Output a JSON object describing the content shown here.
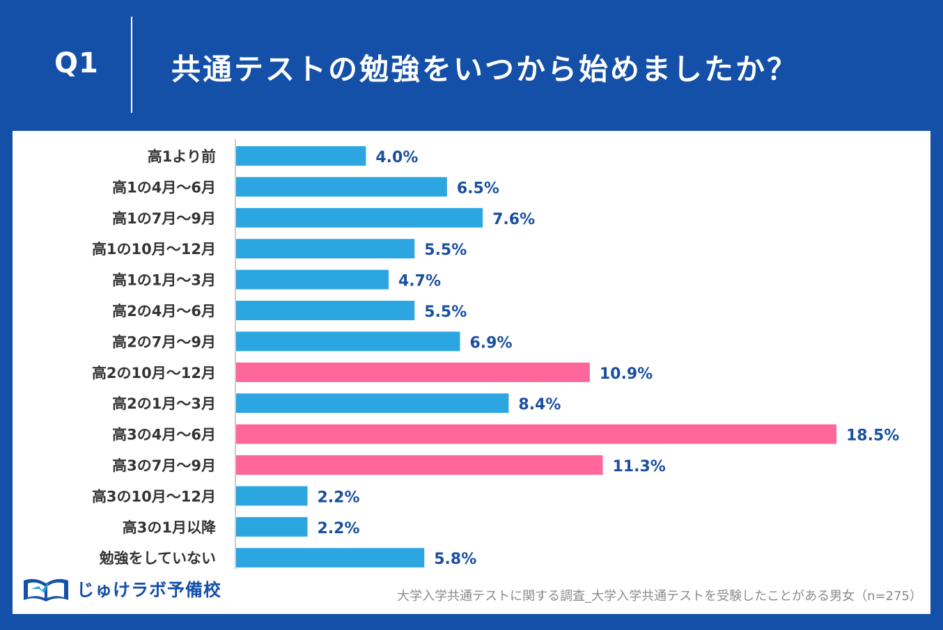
{
  "header": {
    "question_label": "Q1",
    "question_text": "共通テストの勉強をいつから始めましたか？"
  },
  "colors": {
    "background": "#1550a8",
    "bar_default": "#2ca6e0",
    "bar_highlight": "#ff6699",
    "value_label": "#1a4fa0",
    "category_label": "#333333"
  },
  "chart_data": {
    "type": "bar",
    "orientation": "horizontal",
    "categories": [
      "高1より前",
      "高1の4月～6月",
      "高1の7月～9月",
      "高1の10月～12月",
      "高1の1月～3月",
      "高2の4月～6月",
      "高2の7月～9月",
      "高2の10月～12月",
      "高2の1月～3月",
      "高3の4月～6月",
      "高3の7月～9月",
      "高3の10月～12月",
      "高3の1月以降",
      "勉強をしていない"
    ],
    "values": [
      4.0,
      6.5,
      7.6,
      5.5,
      4.7,
      5.5,
      6.9,
      10.9,
      8.4,
      18.5,
      11.3,
      2.2,
      2.2,
      5.8
    ],
    "value_labels": [
      "4.0%",
      "6.5%",
      "7.6%",
      "5.5%",
      "4.7%",
      "5.5%",
      "6.9%",
      "10.9%",
      "8.4%",
      "18.5%",
      "11.3%",
      "2.2%",
      "2.2%",
      "5.8%"
    ],
    "highlighted": [
      false,
      false,
      false,
      false,
      false,
      false,
      false,
      true,
      false,
      true,
      true,
      false,
      false,
      false
    ],
    "unit": "%",
    "xlim": [
      0,
      18.5
    ],
    "grid": false,
    "title": "共通テストの勉強をいつから始めましたか？"
  },
  "footer": {
    "logo_text": "じゅけラボ予備校",
    "source": "大学入学共通テストに関する調査_大学入学共通テストを受験したことがある男女（n=275）"
  }
}
